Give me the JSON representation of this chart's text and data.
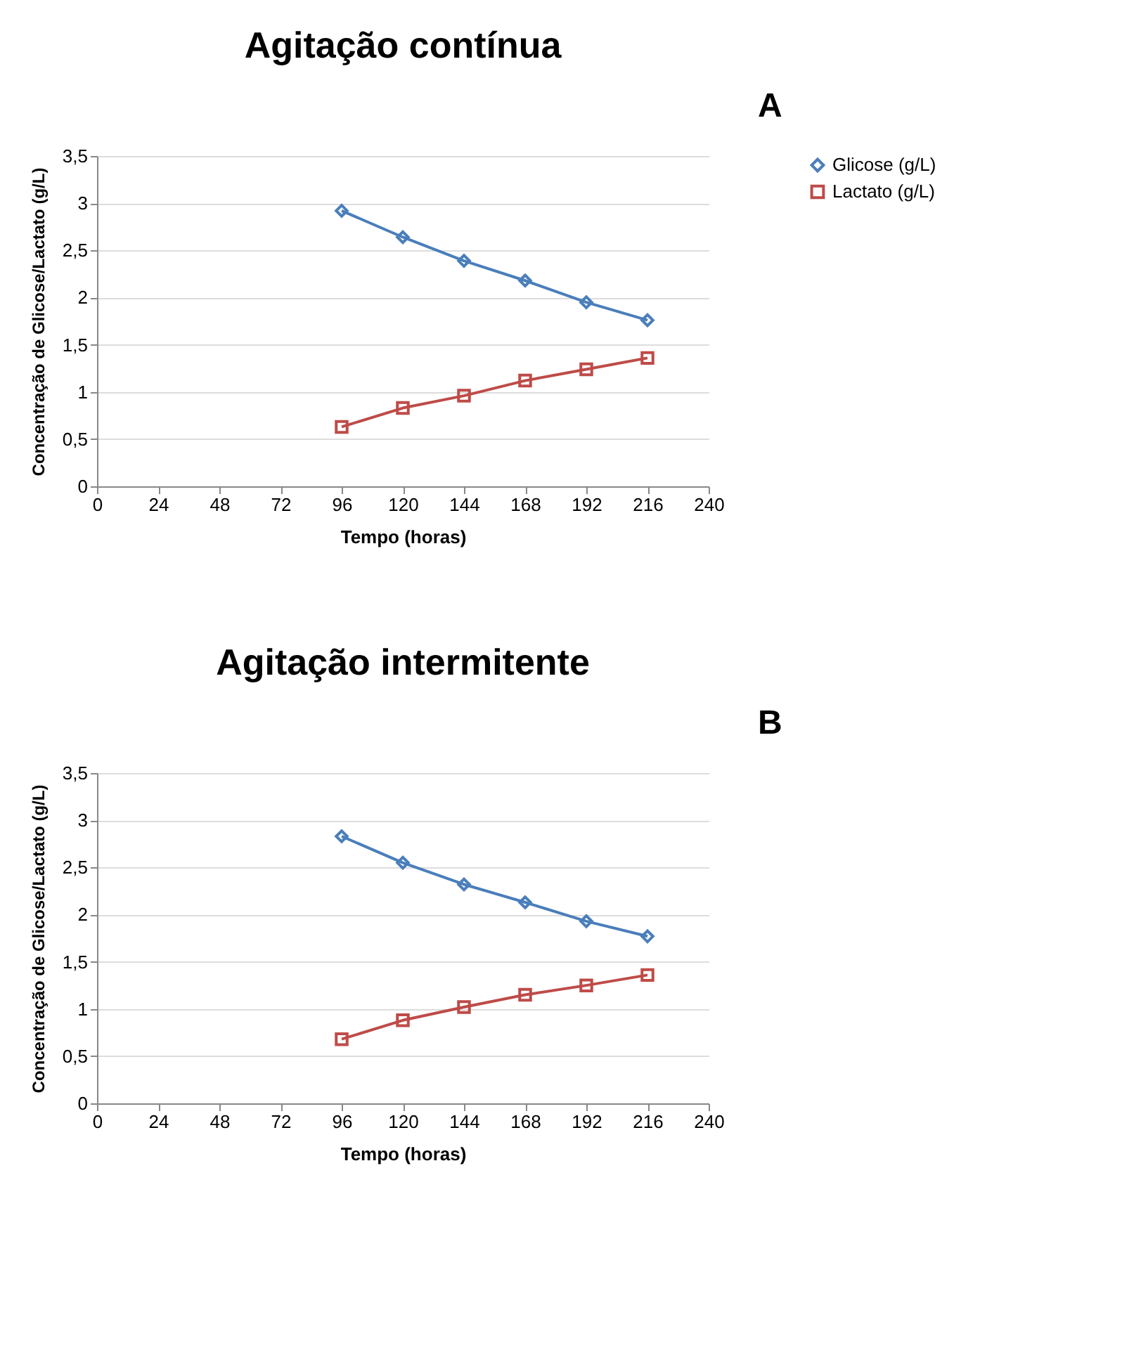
{
  "chart_data": [
    {
      "type": "line",
      "title": "Agitação contínua",
      "annotations": [
        "A"
      ],
      "xlabel": "Tempo (horas)",
      "ylabel": "Concentração de Glicose/Lactato (g/L)",
      "x": [
        96,
        120,
        144,
        168,
        192,
        216
      ],
      "series": [
        {
          "name": "Glicose (g/L)",
          "color": "#4a7ebb",
          "marker": "diamond",
          "values": [
            2.92,
            2.64,
            2.39,
            2.18,
            1.95,
            1.76
          ]
        },
        {
          "name": "Lactato (g/L)",
          "color": "#be4b48",
          "marker": "square",
          "values": [
            0.63,
            0.83,
            0.96,
            1.12,
            1.24,
            1.36
          ]
        }
      ],
      "xlim": [
        0,
        240
      ],
      "xticks": [
        0,
        24,
        48,
        72,
        96,
        120,
        144,
        168,
        192,
        216,
        240
      ],
      "ylim": [
        0,
        3.5
      ],
      "yticks": [
        0,
        {
          "value": 0.5,
          "label": "0,5"
        },
        1,
        {
          "value": 1.5,
          "label": "1,5"
        },
        2,
        {
          "value": 2.5,
          "label": "2,5"
        },
        3,
        {
          "value": 3.5,
          "label": "3,5"
        }
      ],
      "grid": "y",
      "legend": "right",
      "line_style": "solid"
    },
    {
      "type": "line",
      "title": "Agitação intermitente",
      "annotations": [
        "B"
      ],
      "xlabel": "Tempo (horas)",
      "ylabel": "Concentração de Glicose/Lactato (g/L)",
      "x": [
        96,
        120,
        144,
        168,
        192,
        216
      ],
      "series": [
        {
          "name": "Glicose (g/L)",
          "color": "#4a7ebb",
          "marker": "diamond",
          "values": [
            2.83,
            2.55,
            2.32,
            2.13,
            1.93,
            1.77
          ]
        },
        {
          "name": "Lactato (g/L)",
          "color": "#be4b48",
          "marker": "square",
          "values": [
            0.68,
            0.88,
            1.02,
            1.15,
            1.25,
            1.36
          ]
        }
      ],
      "xlim": [
        0,
        240
      ],
      "xticks": [
        0,
        24,
        48,
        72,
        96,
        120,
        144,
        168,
        192,
        216,
        240
      ],
      "ylim": [
        0,
        3.5
      ],
      "yticks": [
        0,
        {
          "value": 0.5,
          "label": "0,5"
        },
        1,
        {
          "value": 1.5,
          "label": "1,5"
        },
        2,
        {
          "value": 2.5,
          "label": "2,5"
        },
        3,
        {
          "value": 3.5,
          "label": "3,5"
        }
      ],
      "grid": "y",
      "legend": "right",
      "line_style": "solid"
    }
  ]
}
